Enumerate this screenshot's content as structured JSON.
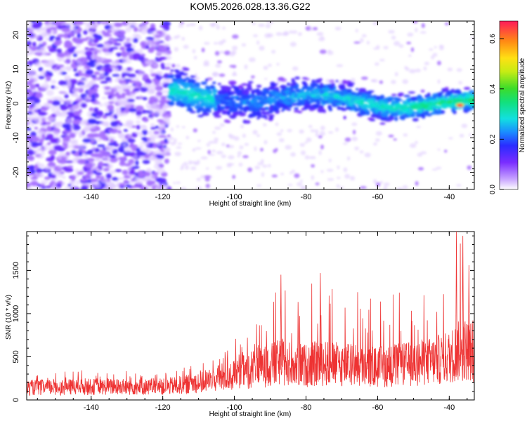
{
  "title": "KOM5.2026.028.13.36.G22",
  "chart_data": [
    {
      "type": "heatmap",
      "xlabel": "Height of straight line (km)",
      "ylabel": "Frequency (Hz)",
      "xlim": [
        -158,
        -33
      ],
      "ylim": [
        -25,
        24
      ],
      "xticks": [
        -140,
        -120,
        -100,
        -80,
        -60,
        -40
      ],
      "yticks": [
        -20,
        -10,
        0,
        10,
        20
      ],
      "colorbar": {
        "label": "Normalized spectral amplitude",
        "range": [
          0,
          0.67
        ],
        "ticks": [
          0.0,
          0.2,
          0.4,
          0.6
        ]
      },
      "features": {
        "noise_region_x": [
          -158,
          -118
        ],
        "signal_band_center_hz": 0,
        "signal_band_start_km": -118,
        "peak_x_km": -37,
        "peak_amplitude": 0.67
      }
    },
    {
      "type": "line",
      "xlabel": "Height of straight line (km)",
      "ylabel": "SNR (10 * v/v)",
      "xlim": [
        -158,
        -33
      ],
      "ylim": [
        0,
        1950
      ],
      "xticks": [
        -140,
        -120,
        -100,
        -80,
        -60,
        -40
      ],
      "yticks": [
        0,
        500,
        1000,
        1500
      ],
      "color": "#ee3333",
      "envelope": {
        "x": [
          -158,
          -140,
          -120,
          -113,
          -110,
          -105,
          -100,
          -95,
          -90,
          -87,
          -85,
          -80,
          -76,
          -70,
          -66,
          -60,
          -55,
          -50,
          -45,
          -40,
          -38,
          -36,
          -34,
          -33
        ],
        "mean": [
          150,
          160,
          160,
          190,
          220,
          260,
          300,
          380,
          420,
          460,
          440,
          420,
          450,
          430,
          420,
          400,
          420,
          440,
          470,
          520,
          580,
          620,
          600,
          560
        ],
        "max": [
          280,
          380,
          300,
          440,
          380,
          560,
          700,
          900,
          1100,
          1450,
          1250,
          1300,
          1470,
          1200,
          1320,
          1150,
          1300,
          1250,
          1280,
          1500,
          1950,
          1900,
          1600,
          1200
        ]
      }
    }
  ]
}
